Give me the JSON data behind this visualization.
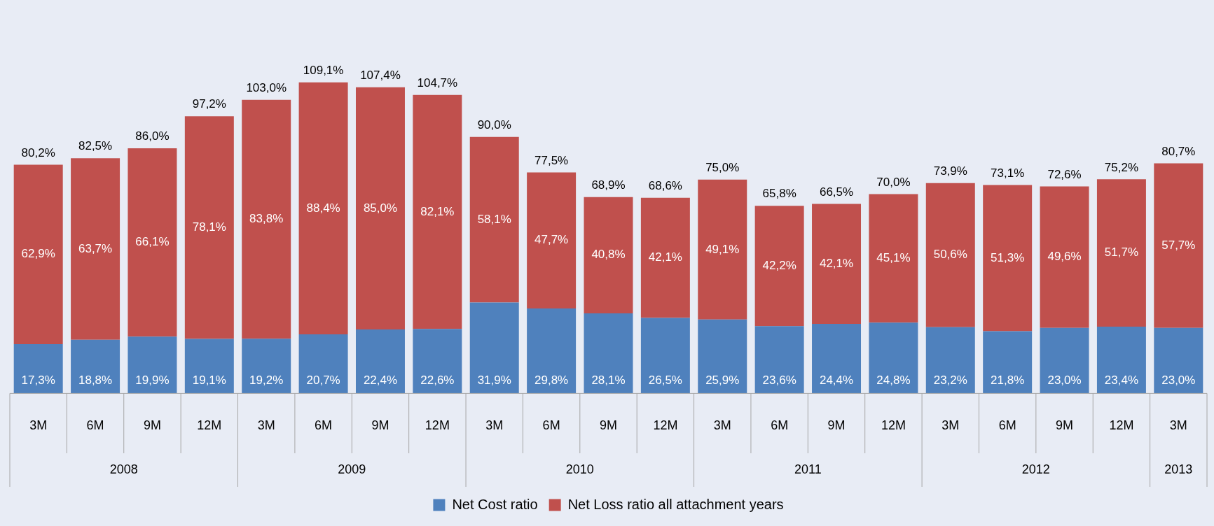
{
  "chart_data": {
    "type": "bar",
    "stacked": true,
    "legend": "bottom",
    "categories": [
      "3M",
      "6M",
      "9M",
      "12M",
      "3M",
      "6M",
      "9M",
      "12M",
      "3M",
      "6M",
      "9M",
      "12M",
      "3M",
      "6M",
      "9M",
      "12M",
      "3M",
      "6M",
      "9M",
      "12M",
      "3M"
    ],
    "annotations": [
      "2008",
      "2009",
      "2010",
      "2011",
      "2012",
      "2013"
    ],
    "series": [
      {
        "name": "Net Cost ratio",
        "color": "#4f81bd",
        "values": [
          17.3,
          18.8,
          19.9,
          19.1,
          19.2,
          20.7,
          22.4,
          22.6,
          31.9,
          29.8,
          28.1,
          26.5,
          25.9,
          23.6,
          24.4,
          24.8,
          23.2,
          21.8,
          23.0,
          23.4,
          23.0
        ],
        "value_labels": [
          "17,3%",
          "18,8%",
          "19,9%",
          "19,1%",
          "19,2%",
          "20,7%",
          "22,4%",
          "22,6%",
          "31,9%",
          "29,8%",
          "28,1%",
          "26,5%",
          "25,9%",
          "23,6%",
          "24,4%",
          "24,8%",
          "23,2%",
          "21,8%",
          "23,0%",
          "23,4%",
          "23,0%"
        ]
      },
      {
        "name": "Net Loss ratio all attachment years",
        "color": "#c0504d",
        "values": [
          62.9,
          63.7,
          66.1,
          78.1,
          83.8,
          88.4,
          85.0,
          82.1,
          58.1,
          47.7,
          40.8,
          42.1,
          49.1,
          42.2,
          42.1,
          45.1,
          50.6,
          51.3,
          49.6,
          51.7,
          57.7
        ],
        "value_labels": [
          "62,9%",
          "63,7%",
          "66,1%",
          "78,1%",
          "83,8%",
          "88,4%",
          "85,0%",
          "82,1%",
          "58,1%",
          "47,7%",
          "40,8%",
          "42,1%",
          "49,1%",
          "42,2%",
          "42,1%",
          "45,1%",
          "50,6%",
          "51,3%",
          "49,6%",
          "51,7%",
          "57,7%"
        ]
      }
    ],
    "totals": [
      "80,2%",
      "82,5%",
      "86,0%",
      "97,2%",
      "103,0%",
      "109,1%",
      "107,4%",
      "104,7%",
      "90,0%",
      "77,5%",
      "68,9%",
      "68,6%",
      "75,0%",
      "65,8%",
      "66,5%",
      "70,0%",
      "73,9%",
      "73,1%",
      "72,6%",
      "75,2%",
      "80,7%"
    ]
  }
}
